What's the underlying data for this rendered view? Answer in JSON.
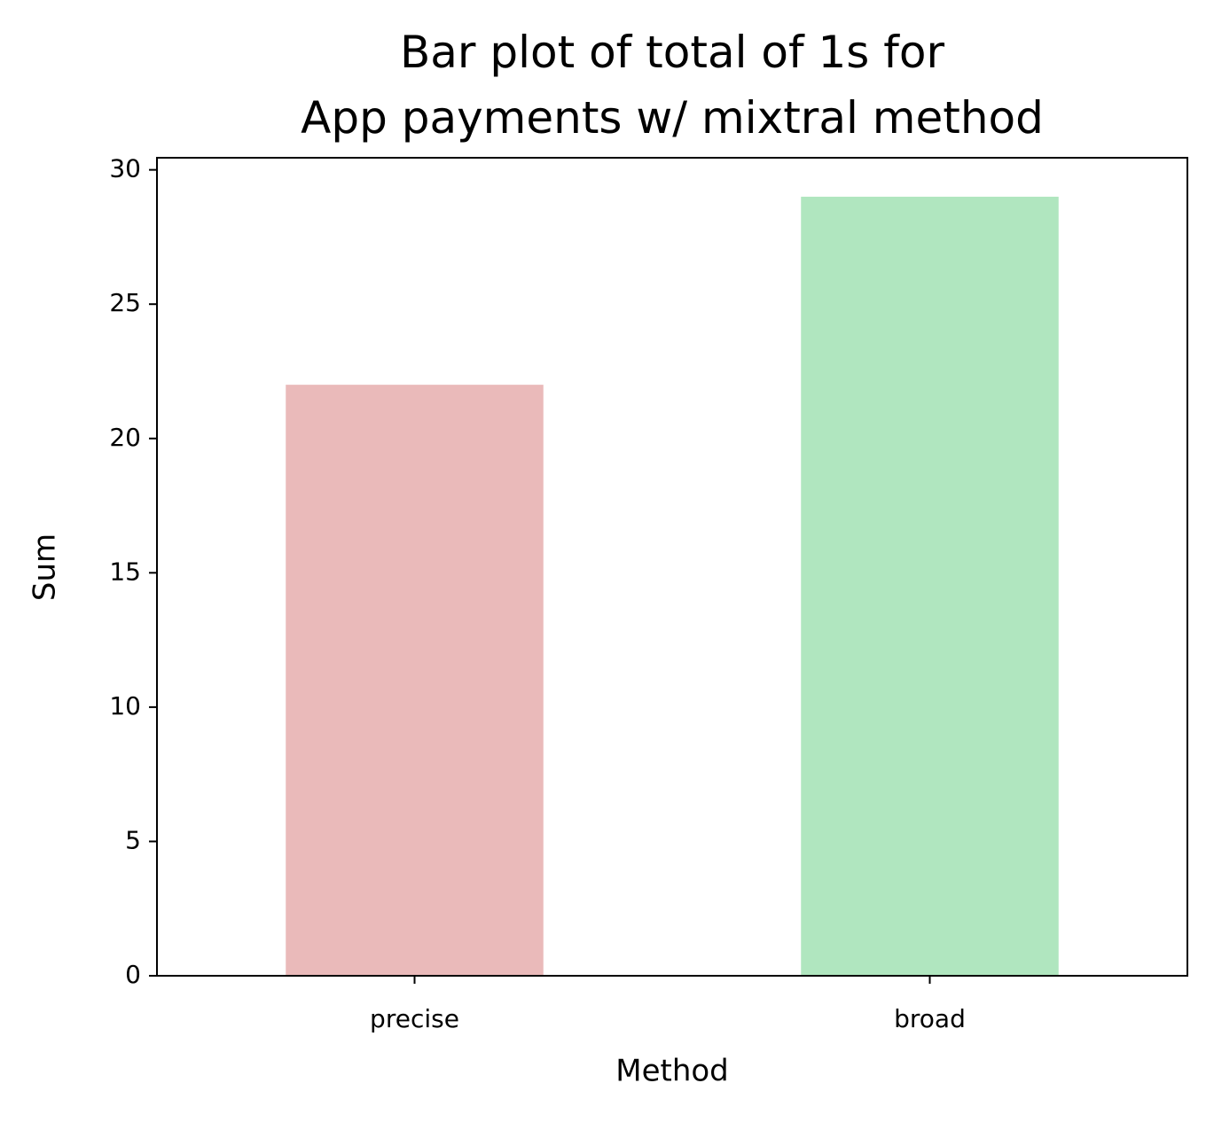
{
  "chart_data": {
    "type": "bar",
    "title": "Bar plot of total of 1s for\nApp payments w/ mixtral method",
    "xlabel": "Method",
    "ylabel": "Sum",
    "categories": [
      "precise",
      "broad"
    ],
    "values": [
      22,
      29
    ],
    "colors": [
      "#eababa",
      "#b0e6bf"
    ],
    "ylim": [
      0,
      30.45
    ],
    "yticks": [
      0,
      5,
      10,
      15,
      20,
      25,
      30
    ],
    "grid": false
  }
}
